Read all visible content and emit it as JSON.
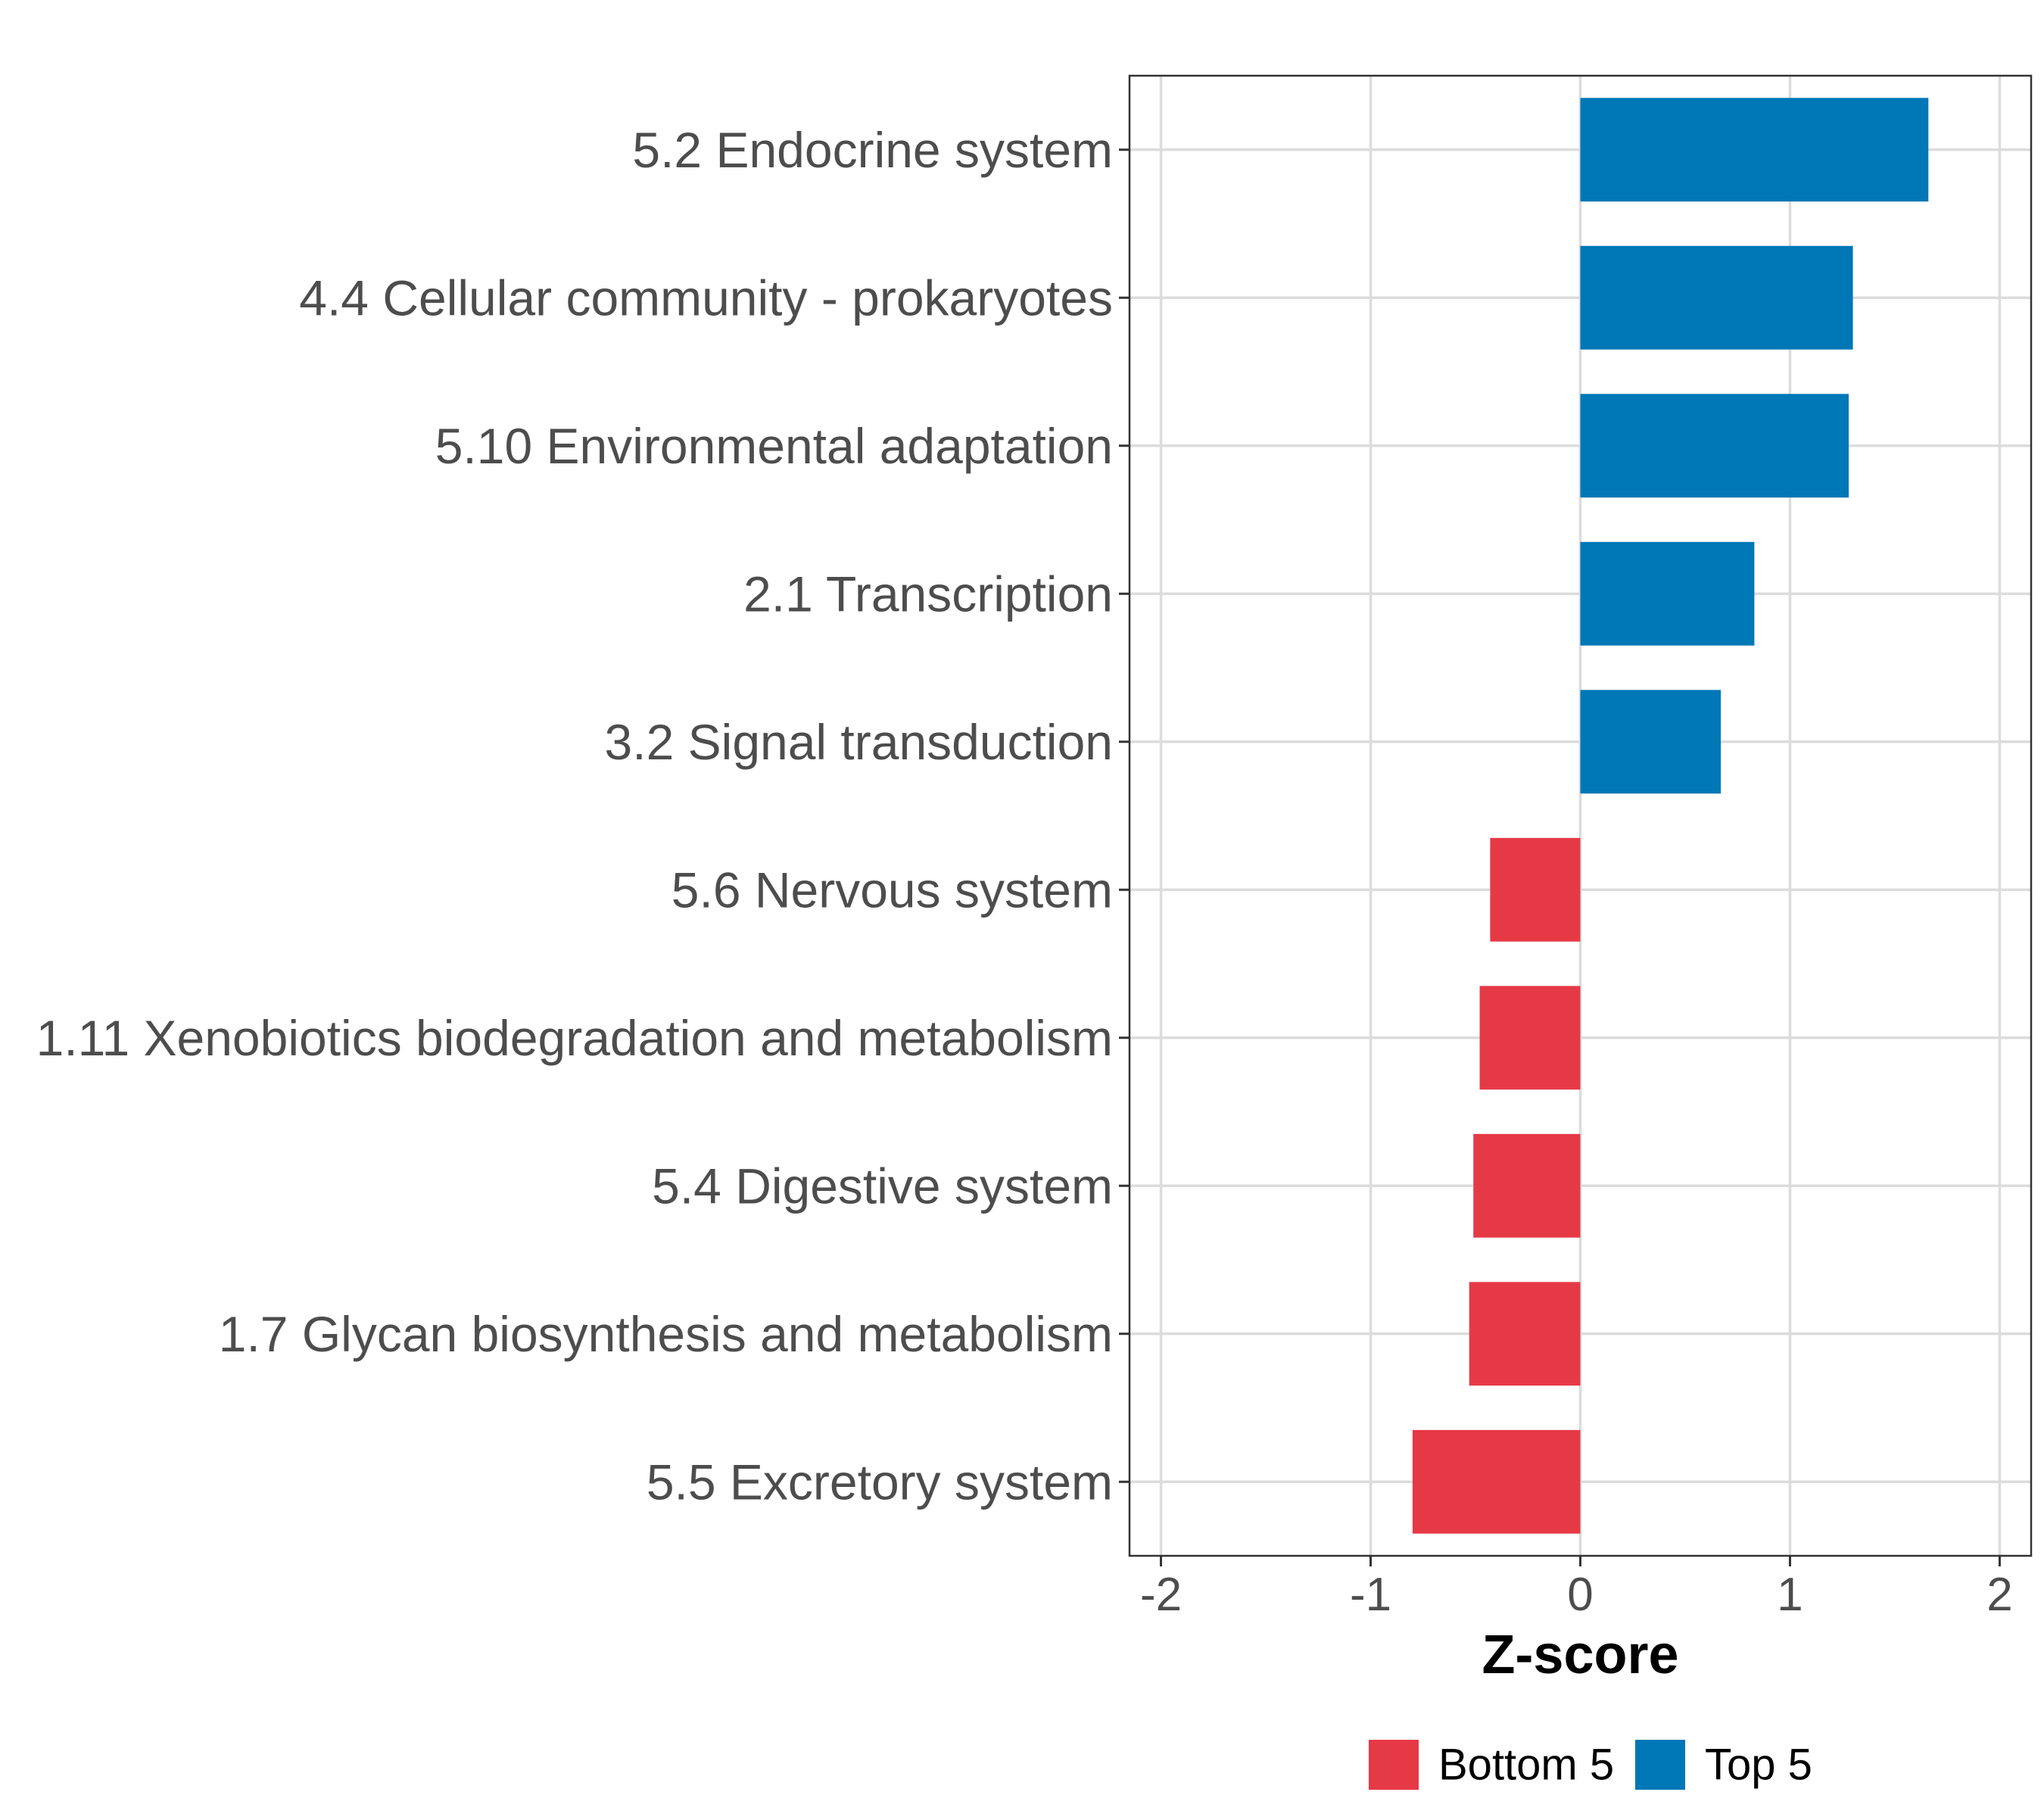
{
  "chart_data": {
    "type": "bar",
    "orientation": "horizontal",
    "title": "",
    "xlabel": "Z-score",
    "ylabel": "",
    "xlim": [
      -2.15,
      2.15
    ],
    "xticks": [
      -2,
      -1,
      0,
      1,
      2
    ],
    "xtick_labels": [
      "-2",
      "-1",
      "0",
      "1",
      "2"
    ],
    "grid": true,
    "categories": [
      "5.2 Endocrine system",
      "4.4 Cellular community - prokaryotes",
      "5.10 Environmental adaptation",
      "2.1 Transcription",
      "3.2 Signal transduction",
      "5.6 Nervous system",
      "1.11 Xenobiotics biodegradation and metabolism",
      "5.4 Digestive system",
      "1.7 Glycan biosynthesis and metabolism",
      "5.5 Excretory system"
    ],
    "values": [
      1.66,
      1.3,
      1.28,
      0.83,
      0.67,
      -0.43,
      -0.48,
      -0.51,
      -0.53,
      -0.8
    ],
    "groups": [
      "Top 5",
      "Top 5",
      "Top 5",
      "Top 5",
      "Top 5",
      "Bottom 5",
      "Bottom 5",
      "Bottom 5",
      "Bottom 5",
      "Bottom 5"
    ],
    "legend": {
      "position": "bottom",
      "items": [
        {
          "label": "Bottom 5",
          "color": "#E63946"
        },
        {
          "label": "Top 5",
          "color": "#0077B6"
        }
      ]
    }
  }
}
